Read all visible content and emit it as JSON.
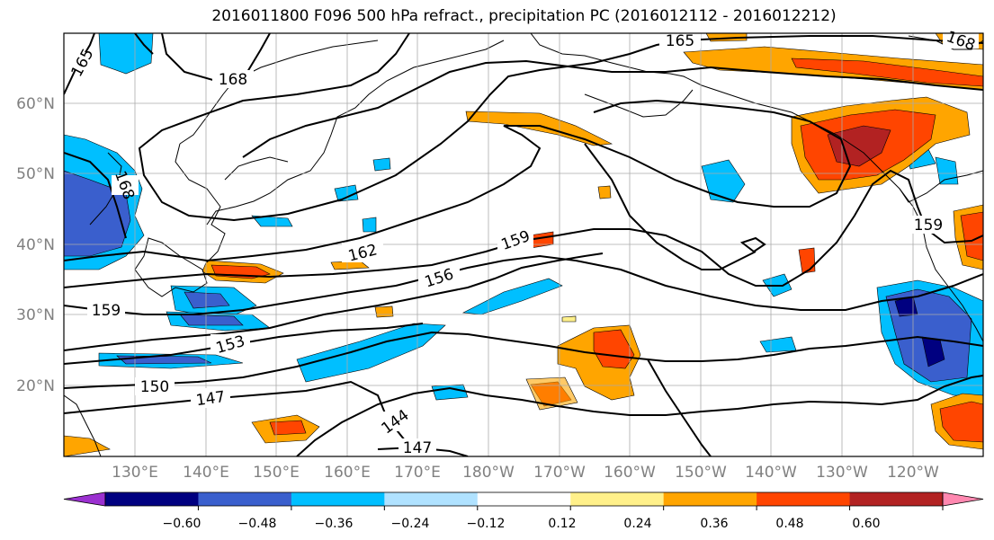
{
  "title": "2016011800 F096 500 hPa refract., precipitation PC (2016012112 - 2016012212)",
  "lat_labels": [
    "60°N",
    "50°N",
    "40°N",
    "30°N",
    "20°N"
  ],
  "lon_labels": [
    "130°E",
    "140°E",
    "150°E",
    "160°E",
    "170°E",
    "180°W",
    "170°W",
    "160°W",
    "150°W",
    "140°W",
    "130°W",
    "120°W"
  ],
  "contour_labels": [
    "165",
    "168",
    "165",
    "168",
    "168",
    "162",
    "159",
    "156",
    "159",
    "159",
    "153",
    "150",
    "147",
    "144",
    "147"
  ],
  "colorbar": {
    "colors": [
      "#9b30d0",
      "#000080",
      "#3a5fcd",
      "#00bfff",
      "#b0e2ff",
      "#ffffff",
      "#fff08a",
      "#ffa500",
      "#ff4500",
      "#b22222",
      "#ff88b0"
    ],
    "tick_labels": [
      "−0.60",
      "−0.48",
      "−0.36",
      "−0.24",
      "−0.12",
      "0.12",
      "0.24",
      "0.36",
      "0.48",
      "0.60"
    ]
  }
}
